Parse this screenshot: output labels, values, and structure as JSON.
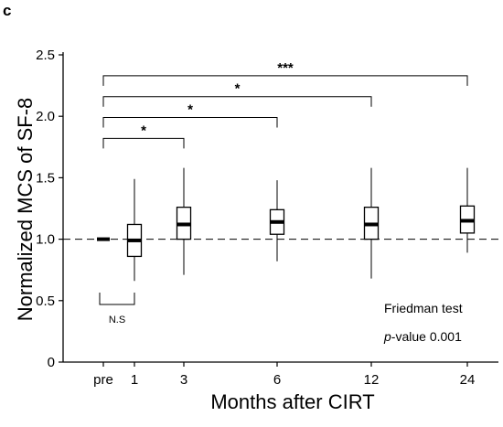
{
  "panel_label": "c",
  "annotations": {
    "test_name": "Friedman test",
    "p_prefix": "p",
    "p_suffix": "-value 0.001",
    "ns_label": "N.S"
  },
  "chart_data": {
    "type": "box",
    "xlabel": "Months after CIRT",
    "ylabel": "Normalized MCS of SF-8",
    "categories": [
      "pre",
      "1",
      "3",
      "6",
      "12",
      "24"
    ],
    "ylim": [
      0,
      2.5
    ],
    "yticks": [
      "0",
      "0.5",
      "1.0",
      "1.5",
      "2.0",
      "2.5"
    ],
    "ytick_values": [
      0,
      0.5,
      1.0,
      1.5,
      2.0,
      2.5
    ],
    "reference_line": 1.0,
    "boxes": [
      {
        "category": "pre",
        "min": 1.0,
        "q1": 1.0,
        "median": 1.0,
        "q3": 1.0,
        "max": 1.0
      },
      {
        "category": "1",
        "min": 0.66,
        "q1": 0.86,
        "median": 0.99,
        "q3": 1.12,
        "max": 1.49
      },
      {
        "category": "3",
        "min": 0.71,
        "q1": 1.0,
        "median": 1.12,
        "q3": 1.26,
        "max": 1.58
      },
      {
        "category": "6",
        "min": 0.82,
        "q1": 1.04,
        "median": 1.14,
        "q3": 1.24,
        "max": 1.48
      },
      {
        "category": "12",
        "min": 0.68,
        "q1": 1.0,
        "median": 1.12,
        "q3": 1.26,
        "max": 1.58
      },
      {
        "category": "24",
        "min": 0.89,
        "q1": 1.05,
        "median": 1.15,
        "q3": 1.27,
        "max": 1.58
      }
    ],
    "comparisons": [
      {
        "from": "pre",
        "to": "3",
        "y": 1.82,
        "label": "*"
      },
      {
        "from": "pre",
        "to": "6",
        "y": 1.99,
        "label": "*"
      },
      {
        "from": "pre",
        "to": "12",
        "y": 2.16,
        "label": "*"
      },
      {
        "from": "pre",
        "to": "24",
        "y": 2.33,
        "label": "***"
      }
    ]
  }
}
